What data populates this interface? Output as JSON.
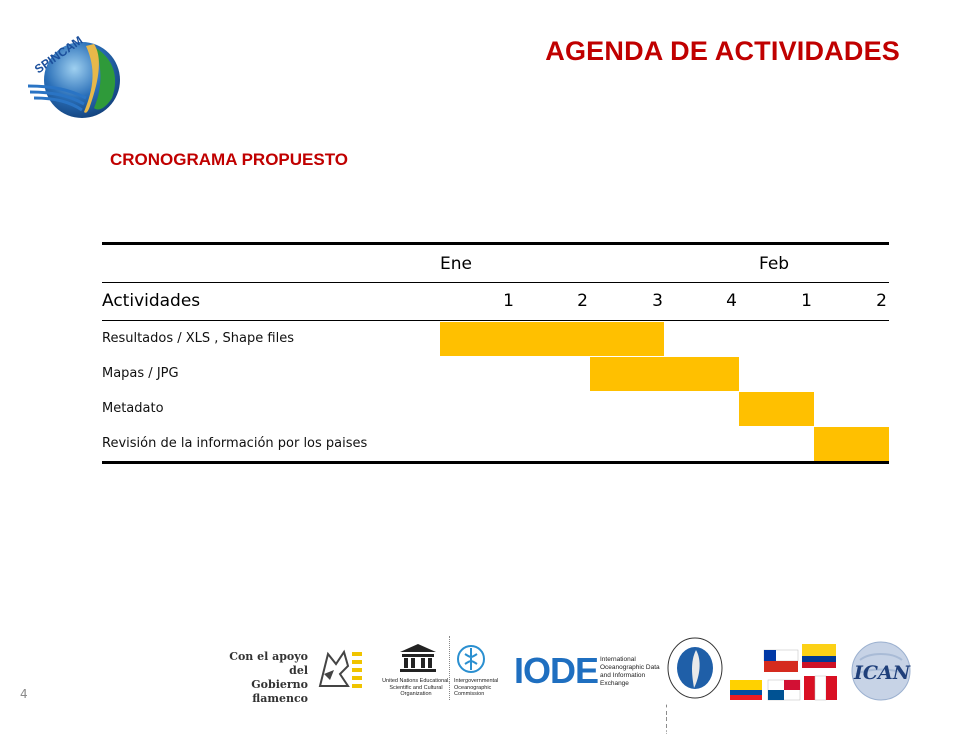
{
  "header": {
    "logo_text": "SPINCAM",
    "title": "AGENDA DE ACTIVIDADES"
  },
  "section": {
    "subtitle": "CRONOGRAMA PROPUESTO"
  },
  "schedule": {
    "months": [
      "Ene",
      "Feb"
    ],
    "activities_header": "Actividades",
    "weeks": [
      "1",
      "2",
      "3",
      "4",
      "1",
      "2"
    ],
    "highlight_color": "#FFC000",
    "activities": [
      {
        "label": "Resultados / XLS , Shape files",
        "active_weeks": [
          1,
          2,
          3
        ]
      },
      {
        "label": "Mapas / JPG",
        "active_weeks": [
          3,
          4
        ]
      },
      {
        "label": "Metadato",
        "active_weeks": [
          5
        ]
      },
      {
        "label": "Revisión de la información por los paises",
        "active_weeks": [
          6
        ]
      }
    ]
  },
  "footer": {
    "page_number": "4",
    "flemish_line1": "Con el apoyo del",
    "flemish_line2": "Gobierno flamenco",
    "unesco_text": "United Nations Educational, Scientific and Cultural Organization",
    "ioc_text": "Intergovernmental Oceanographic Commission",
    "iode_logo": "IODE",
    "iode_text": "International Oceanographic Data and Information Exchange",
    "cpps_text": "COMISIÓN PERMANENTE DEL PACÍFICO SUR",
    "ican_logo": "ICAN"
  }
}
